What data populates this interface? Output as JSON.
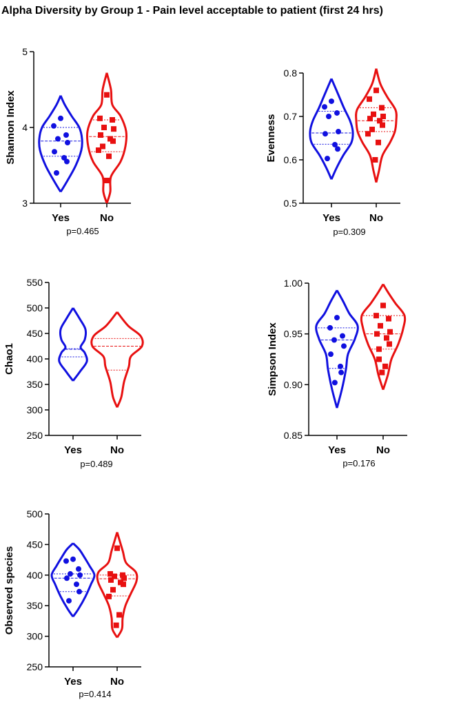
{
  "title": "Alpha Diversity by Group 1 - Pain level acceptable to patient (first 24 hrs)",
  "colors": {
    "Yes": "#1010e0",
    "No": "#e81010"
  },
  "chart_data": [
    {
      "type": "violin",
      "ylabel": "Shannon Index",
      "ylim": [
        3,
        5
      ],
      "yticks": [
        3,
        4,
        5
      ],
      "yticklabels": [
        "3",
        "4",
        "5"
      ],
      "categories": [
        "Yes",
        "No"
      ],
      "pvalue": "p=0.465",
      "groups": [
        {
          "name": "Yes",
          "marker": "circle",
          "median": 3.82,
          "q1": 3.62,
          "q3": 4.0,
          "points": [
            4.12,
            4.02,
            3.9,
            3.85,
            3.8,
            3.68,
            3.6,
            3.55,
            3.4
          ],
          "profile": [
            [
              3.15,
              0
            ],
            [
              3.3,
              10
            ],
            [
              3.5,
              22
            ],
            [
              3.7,
              30
            ],
            [
              3.85,
              31
            ],
            [
              4.0,
              27
            ],
            [
              4.15,
              16
            ],
            [
              4.3,
              6
            ],
            [
              4.42,
              0
            ]
          ]
        },
        {
          "name": "No",
          "marker": "square",
          "median": 3.88,
          "q1": 3.68,
          "q3": 4.1,
          "points": [
            4.43,
            4.12,
            4.1,
            4.0,
            3.98,
            3.9,
            3.85,
            3.82,
            3.75,
            3.7,
            3.62,
            3.3
          ],
          "profile": [
            [
              3.0,
              0
            ],
            [
              3.15,
              5
            ],
            [
              3.35,
              6
            ],
            [
              3.55,
              20
            ],
            [
              3.75,
              27
            ],
            [
              3.95,
              28
            ],
            [
              4.15,
              20
            ],
            [
              4.3,
              8
            ],
            [
              4.5,
              6
            ],
            [
              4.72,
              0
            ]
          ]
        }
      ]
    },
    {
      "type": "violin",
      "ylabel": "Evenness",
      "ylim": [
        0.5,
        0.8
      ],
      "yticks": [
        0.5,
        0.6,
        0.7,
        0.8
      ],
      "yticklabels": [
        "0.5",
        "0.6",
        "0.7",
        "0.8"
      ],
      "categories": [
        "Yes",
        "No"
      ],
      "pvalue": "p=0.309",
      "groups": [
        {
          "name": "Yes",
          "marker": "circle",
          "median": 0.662,
          "q1": 0.636,
          "q3": 0.712,
          "points": [
            0.735,
            0.722,
            0.708,
            0.7,
            0.665,
            0.66,
            0.635,
            0.625,
            0.603
          ],
          "profile": [
            [
              0.555,
              0
            ],
            [
              0.58,
              7
            ],
            [
              0.61,
              17
            ],
            [
              0.64,
              29
            ],
            [
              0.665,
              31
            ],
            [
              0.69,
              27
            ],
            [
              0.72,
              18
            ],
            [
              0.75,
              10
            ],
            [
              0.787,
              0
            ]
          ]
        },
        {
          "name": "No",
          "marker": "square",
          "median": 0.69,
          "q1": 0.665,
          "q3": 0.72,
          "points": [
            0.76,
            0.74,
            0.72,
            0.705,
            0.7,
            0.695,
            0.69,
            0.68,
            0.67,
            0.66,
            0.64,
            0.6
          ],
          "profile": [
            [
              0.548,
              0
            ],
            [
              0.575,
              4
            ],
            [
              0.61,
              9
            ],
            [
              0.64,
              20
            ],
            [
              0.665,
              27
            ],
            [
              0.69,
              29
            ],
            [
              0.715,
              28
            ],
            [
              0.745,
              16
            ],
            [
              0.775,
              6
            ],
            [
              0.81,
              0
            ]
          ]
        }
      ]
    },
    {
      "type": "violin",
      "ylabel": "Chao1",
      "ylim": [
        250,
        550
      ],
      "yticks": [
        250,
        300,
        350,
        400,
        450,
        500,
        550
      ],
      "yticklabels": [
        "250",
        "300",
        "350",
        "400",
        "450",
        "500",
        "550"
      ],
      "categories": [
        "Yes",
        "No"
      ],
      "pvalue": "p=0.489",
      "groups": [
        {
          "name": "Yes",
          "marker": "none",
          "median": 419,
          "q1": 404,
          "q3": 420,
          "points": [],
          "profile": [
            [
              357,
              0
            ],
            [
              375,
              10
            ],
            [
              395,
              20
            ],
            [
              412,
              17
            ],
            [
              423,
              11
            ],
            [
              438,
              17
            ],
            [
              458,
              18
            ],
            [
              478,
              10
            ],
            [
              500,
              0
            ]
          ]
        },
        {
          "name": "No",
          "marker": "none",
          "median": 425,
          "q1": 378,
          "q3": 440,
          "points": [],
          "profile": [
            [
              305,
              0
            ],
            [
              325,
              6
            ],
            [
              355,
              10
            ],
            [
              385,
              17
            ],
            [
              405,
              20
            ],
            [
              425,
              36
            ],
            [
              445,
              34
            ],
            [
              465,
              16
            ],
            [
              492,
              0
            ]
          ]
        }
      ]
    },
    {
      "type": "violin",
      "ylabel": "Simpson Index",
      "ylim": [
        0.85,
        1.0
      ],
      "yticks": [
        0.85,
        0.9,
        0.95,
        1.0
      ],
      "yticklabels": [
        "0.85",
        "0.90",
        "0.95",
        "1.00"
      ],
      "categories": [
        "Yes",
        "No"
      ],
      "pvalue": "p=0.176",
      "groups": [
        {
          "name": "Yes",
          "marker": "circle",
          "median": 0.944,
          "q1": 0.916,
          "q3": 0.956,
          "points": [
            0.966,
            0.956,
            0.948,
            0.944,
            0.938,
            0.93,
            0.918,
            0.912,
            0.902
          ],
          "profile": [
            [
              0.877,
              0
            ],
            [
              0.895,
              7
            ],
            [
              0.915,
              13
            ],
            [
              0.93,
              16
            ],
            [
              0.945,
              26
            ],
            [
              0.958,
              30
            ],
            [
              0.97,
              18
            ],
            [
              0.982,
              9
            ],
            [
              0.993,
              0
            ]
          ]
        },
        {
          "name": "No",
          "marker": "square",
          "median": 0.95,
          "q1": 0.935,
          "q3": 0.968,
          "points": [
            0.978,
            0.968,
            0.965,
            0.958,
            0.952,
            0.95,
            0.946,
            0.94,
            0.935,
            0.925,
            0.918,
            0.912
          ],
          "profile": [
            [
              0.895,
              0
            ],
            [
              0.91,
              7
            ],
            [
              0.925,
              12
            ],
            [
              0.94,
              22
            ],
            [
              0.955,
              29
            ],
            [
              0.968,
              31
            ],
            [
              0.98,
              18
            ],
            [
              0.99,
              8
            ],
            [
              0.999,
              0
            ]
          ]
        }
      ]
    },
    {
      "type": "violin",
      "ylabel": "Observed species",
      "ylim": [
        250,
        500
      ],
      "yticks": [
        250,
        300,
        350,
        400,
        450,
        500
      ],
      "yticklabels": [
        "250",
        "300",
        "350",
        "400",
        "450",
        "500"
      ],
      "categories": [
        "Yes",
        "No"
      ],
      "pvalue": "p=0.414",
      "groups": [
        {
          "name": "Yes",
          "marker": "circle",
          "median": 395,
          "q1": 373,
          "q3": 402,
          "points": [
            426,
            423,
            410,
            402,
            400,
            395,
            385,
            373,
            358
          ],
          "profile": [
            [
              332,
              0
            ],
            [
              345,
              8
            ],
            [
              365,
              18
            ],
            [
              385,
              26
            ],
            [
              400,
              31
            ],
            [
              415,
              24
            ],
            [
              430,
              16
            ],
            [
              442,
              9
            ],
            [
              452,
              0
            ]
          ]
        },
        {
          "name": "No",
          "marker": "square",
          "median": 394,
          "q1": 366,
          "q3": 400,
          "points": [
            444,
            402,
            400,
            398,
            395,
            392,
            388,
            385,
            376,
            365,
            335,
            318
          ],
          "profile": [
            [
              298,
              0
            ],
            [
              312,
              7
            ],
            [
              330,
              8
            ],
            [
              350,
              12
            ],
            [
              370,
              20
            ],
            [
              390,
              28
            ],
            [
              405,
              27
            ],
            [
              420,
              13
            ],
            [
              440,
              8
            ],
            [
              470,
              0
            ]
          ]
        }
      ]
    }
  ]
}
